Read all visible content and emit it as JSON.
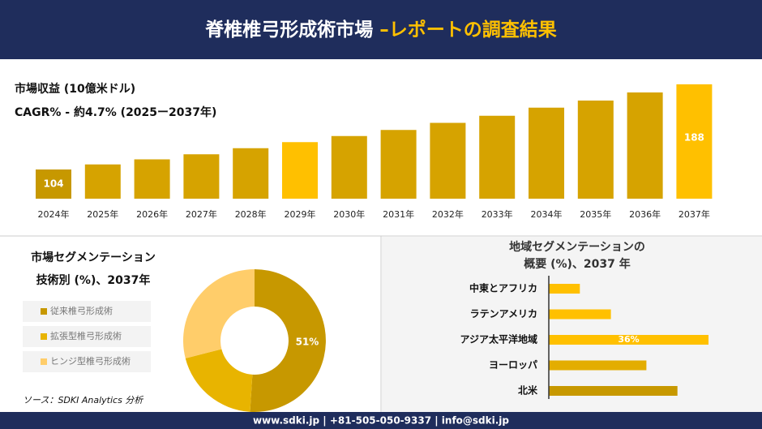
{
  "header": {
    "title": "脊椎椎弓形成術市場",
    "title_accent": "–レポートの調査結果"
  },
  "chart_data": [
    {
      "type": "bar",
      "title": "市場収益 (10億米ドル)",
      "subtitle": "CAGR% - 約4.7% (2025ー2037年)",
      "categories": [
        "2024年",
        "2025年",
        "2026年",
        "2027年",
        "2028年",
        "2029年",
        "2030年",
        "2031年",
        "2032年",
        "2033年",
        "2034年",
        "2035年",
        "2036年",
        "2037年"
      ],
      "values": [
        104,
        109,
        114,
        119,
        125,
        131,
        137,
        143,
        150,
        157,
        165,
        172,
        180,
        188
      ],
      "colors": [
        "#c79800",
        "#d6a300",
        "#d6a300",
        "#d6a300",
        "#d6a300",
        "#ffc000",
        "#d6a300",
        "#d6a300",
        "#d6a300",
        "#d6a300",
        "#d6a300",
        "#d6a300",
        "#d6a300",
        "#ffc000"
      ]
    },
    {
      "type": "donut",
      "title": "市場セグメンテーション",
      "subtitle": "技術別 (%)、2037年",
      "categories": [
        "従来椎弓形成術",
        "拡張型椎弓形成術",
        "ヒンジ型椎弓形成術"
      ],
      "values": [
        51,
        20,
        29
      ],
      "value_labels": [
        "51%",
        null,
        null
      ],
      "colors": [
        "#c79800",
        "#e8b400",
        "#ffcd6a"
      ]
    },
    {
      "type": "hbar",
      "title": [
        "地域セグメンテーションの",
        "概要 (%)、2037 年"
      ],
      "categories": [
        "中東とアフリカ",
        "ラテンアメリカ",
        "アジア太平洋地域",
        "ヨーロッパ",
        "北米"
      ],
      "values": [
        7,
        14,
        36,
        22,
        29
      ],
      "value_labels": [
        null,
        null,
        "36%",
        null,
        null
      ],
      "colors": [
        "#ffc000",
        "#ffc000",
        "#ffc000",
        "#e3ad00",
        "#c79800"
      ]
    }
  ],
  "source": "ソース：SDKI Analytics 分析",
  "footer": "www.sdki.jp | +81-505-050-9337 | info@sdki.jp"
}
